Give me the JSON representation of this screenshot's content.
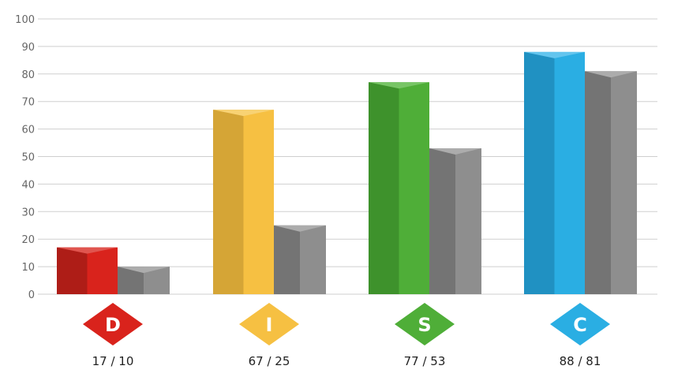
{
  "chart_data": {
    "type": "bar",
    "categories": [
      "D",
      "I",
      "S",
      "C"
    ],
    "series": [
      {
        "values": [
          17,
          67,
          77,
          88
        ]
      },
      {
        "values": [
          10,
          25,
          53,
          81
        ]
      }
    ],
    "value_labels": [
      "17 / 10",
      "67 / 25",
      "77 / 53",
      "88 / 81"
    ],
    "ylim": [
      0,
      100
    ],
    "yticks": [
      0,
      10,
      20,
      30,
      40,
      50,
      60,
      70,
      80,
      90,
      100
    ],
    "grid": true,
    "colors": {
      "D": {
        "light": "#d9231c",
        "dark": "#ae1d17",
        "top": "#e0554f"
      },
      "I": {
        "light": "#f6c042",
        "dark": "#d5a536",
        "top": "#f8d273"
      },
      "S": {
        "light": "#4fae38",
        "dark": "#3e922c",
        "top": "#78c566"
      },
      "C": {
        "light": "#2aaee3",
        "dark": "#2091c2",
        "top": "#63c5ee"
      },
      "gray": {
        "light": "#8e8e8e",
        "dark": "#747474",
        "top": "#acacac"
      },
      "grid": "#cfcfcf"
    }
  }
}
